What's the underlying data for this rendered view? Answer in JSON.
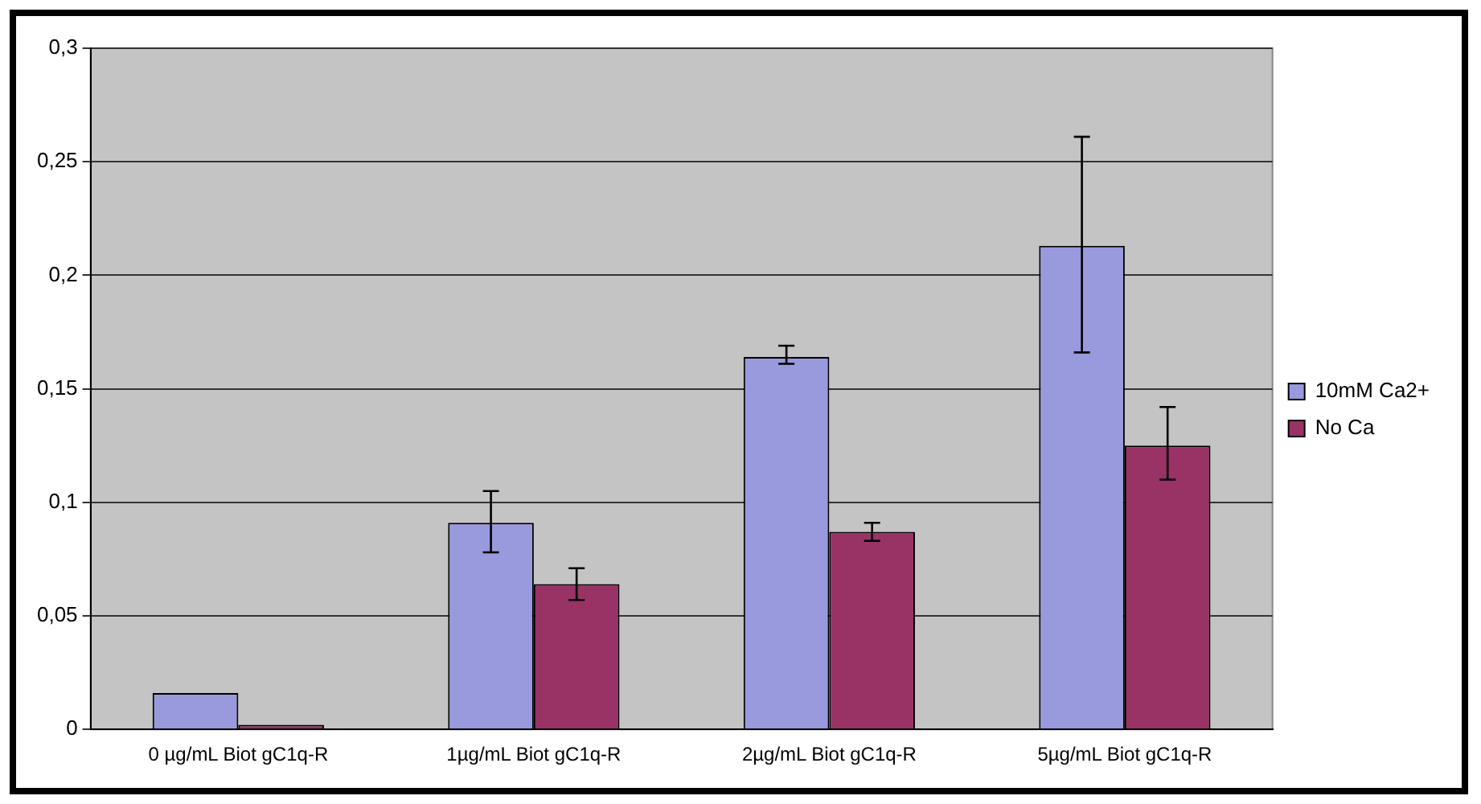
{
  "chart_data": {
    "type": "bar",
    "categories": [
      "0 µg/mL Biot gC1q-R",
      "1µg/mL Biot gC1q-R",
      "2µg/mL Biot gC1q-R",
      "5µg/mL Biot gC1q-R"
    ],
    "series": [
      {
        "name": "10mM Ca2+",
        "color": "#9999dd",
        "values": [
          0.016,
          0.091,
          0.164,
          0.213
        ],
        "errors": [
          null,
          [
            0.078,
            0.105
          ],
          [
            0.161,
            0.169
          ],
          [
            0.166,
            0.261
          ]
        ]
      },
      {
        "name": "No Ca",
        "color": "#993366",
        "values": [
          0.002,
          0.064,
          0.087,
          0.125
        ],
        "errors": [
          null,
          [
            0.057,
            0.071
          ],
          [
            0.083,
            0.091
          ],
          [
            0.11,
            0.142
          ]
        ]
      }
    ],
    "ylim": [
      0,
      0.3
    ],
    "yticks": [
      {
        "value": 0,
        "label": "0"
      },
      {
        "value": 0.05,
        "label": "0,05"
      },
      {
        "value": 0.1,
        "label": "0,1"
      },
      {
        "value": 0.15,
        "label": "0,15"
      },
      {
        "value": 0.2,
        "label": "0,2"
      },
      {
        "value": 0.25,
        "label": "0,25"
      },
      {
        "value": 0.3,
        "label": "0,3"
      }
    ],
    "grid": "y",
    "legend": "right"
  }
}
